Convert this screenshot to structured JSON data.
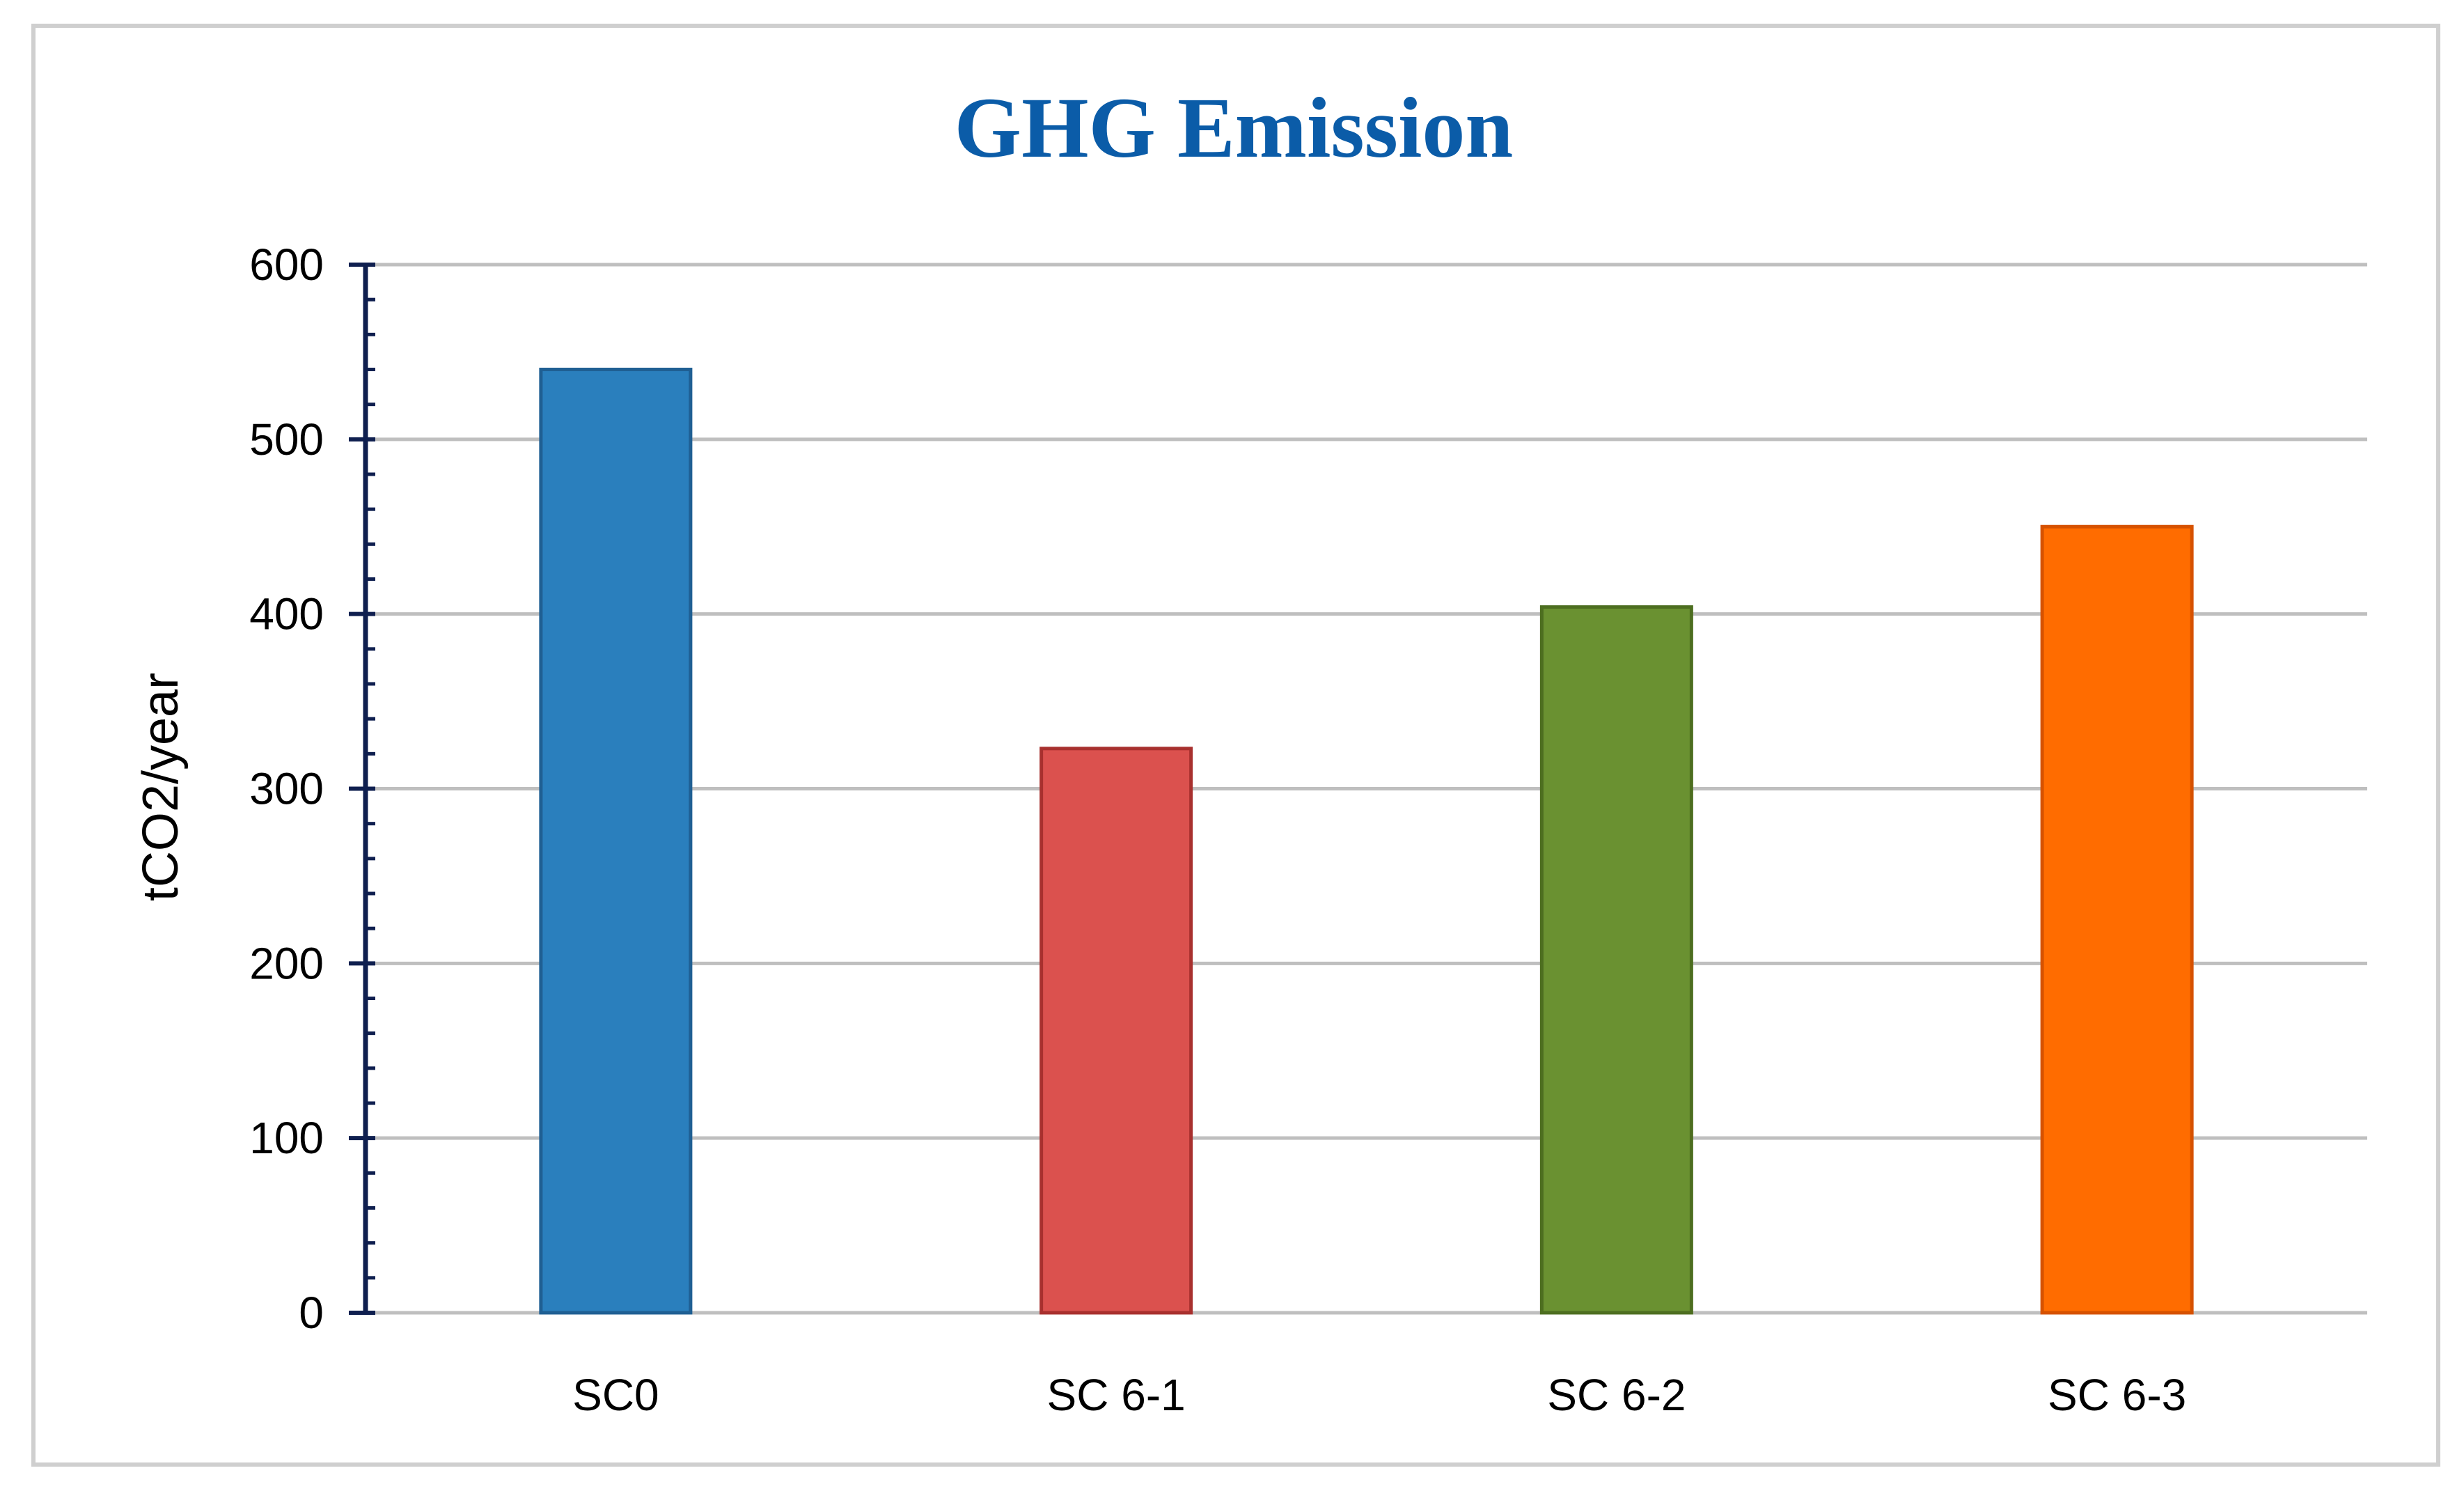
{
  "chart_data": {
    "type": "bar",
    "title": "GHG Emission",
    "title_color": "#0B5CA8",
    "xlabel": "",
    "ylabel": "tCO2/year",
    "categories": [
      "SC0",
      "SC 6-1",
      "SC 6-2",
      "SC 6-3"
    ],
    "values": [
      540,
      323,
      404,
      450
    ],
    "bar_colors": [
      "#2A7FBD",
      "#DB514E",
      "#6A9131",
      "#FF6C00"
    ],
    "bar_edge_colors": [
      "#1F5F93",
      "#A8302E",
      "#4D6E20",
      "#D65200"
    ],
    "ylim": [
      0,
      600
    ],
    "yticks": [
      0,
      100,
      200,
      300,
      400,
      500,
      600
    ],
    "grid": true,
    "grid_color": "#BFBFBF",
    "axis_color": "#0F1F4F",
    "legend": "none"
  }
}
